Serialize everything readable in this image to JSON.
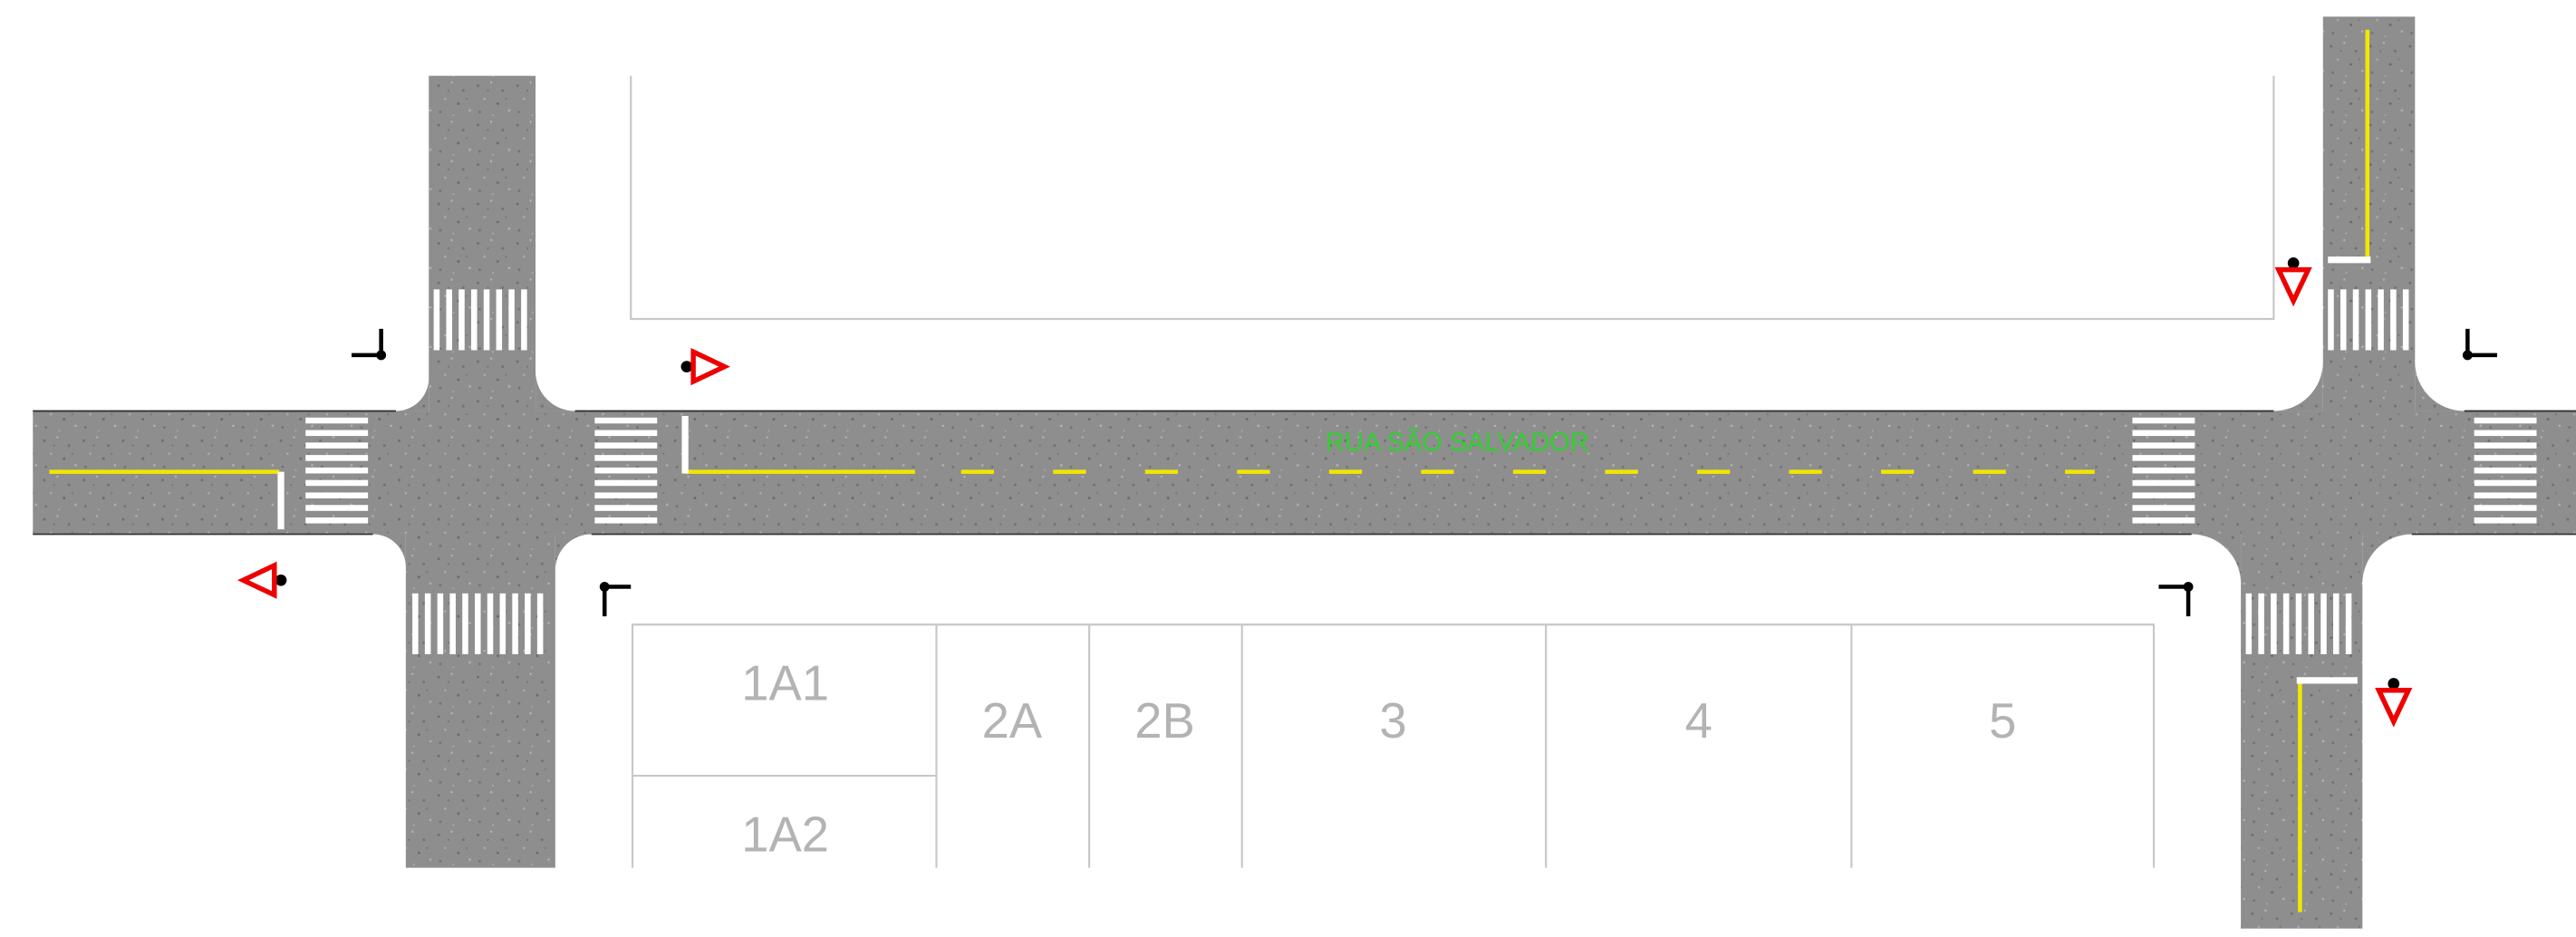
{
  "street_name": "RUA SÃO SALVADOR",
  "lots": [
    "1A1",
    "1A2",
    "2A",
    "2B",
    "3",
    "4",
    "5"
  ]
}
